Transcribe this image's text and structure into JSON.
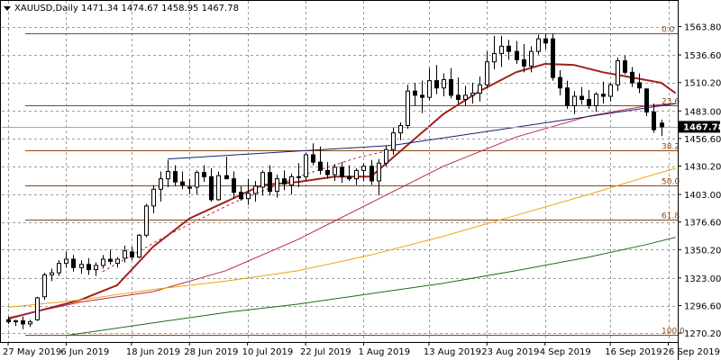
{
  "header": {
    "symbol": "XAUUSD,Daily",
    "ohlc": "1471.34 1474.67 1458.95 1467.78",
    "dropdown_icon": "triangle-down-icon"
  },
  "colors": {
    "background": "#ffffff",
    "grid": "#9e9e9e",
    "candle_bull_fill": "#ffffff",
    "candle_bear_fill": "#000000",
    "candle_outline": "#000000",
    "ma_short": "#a0211a",
    "ma_medium": "#b22a4a",
    "ma_long": "#f0a30a",
    "ma_longest": "#1f6b1f",
    "trendline": "#1c1c6e",
    "fib": "#8b4513",
    "price_marker_bg": "#000000",
    "price_marker_text": "#ffffff"
  },
  "chart_data": {
    "type": "candlestick",
    "title": "XAUUSD,Daily",
    "ylim": [
      1266,
      1572
    ],
    "grid": true,
    "y_ticks": [
      "1563.80",
      "1536.60",
      "1510.20",
      "1483.00",
      "1456.60",
      "1430.20",
      "1403.00",
      "1376.60",
      "1350.20",
      "1323.00",
      "1296.60",
      "1270.20"
    ],
    "y_tick_values": [
      1563.8,
      1536.6,
      1510.2,
      1483.0,
      1456.6,
      1430.2,
      1403.0,
      1376.6,
      1350.2,
      1323.0,
      1296.6,
      1270.2
    ],
    "x_ticks": [
      "27 May 2019",
      "6 Jun 2019",
      "18 Jun 2019",
      "28 Jun 2019",
      "10 Jul 2019",
      "22 Jul 2019",
      "1 Aug 2019",
      "13 Aug 2019",
      "23 Aug 2019",
      "4 Sep 2019",
      "16 Sep 2019",
      "26 Sep 2019"
    ],
    "x_tick_index": [
      0,
      8,
      17,
      25,
      33,
      41,
      49,
      58,
      66,
      74,
      83,
      91
    ],
    "current_price": "1467.78",
    "current_price_value": 1467.78,
    "candles": [
      [
        1283,
        1286,
        1279,
        1281
      ],
      [
        1281,
        1283,
        1277,
        1282
      ],
      [
        1282,
        1286,
        1274,
        1279
      ],
      [
        1279,
        1283,
        1276,
        1281
      ],
      [
        1283,
        1305,
        1282,
        1304
      ],
      [
        1305,
        1328,
        1302,
        1326
      ],
      [
        1326,
        1332,
        1320,
        1328
      ],
      [
        1328,
        1340,
        1325,
        1337
      ],
      [
        1337,
        1348,
        1333,
        1341
      ],
      [
        1341,
        1345,
        1329,
        1333
      ],
      [
        1333,
        1340,
        1327,
        1336
      ],
      [
        1336,
        1342,
        1326,
        1331
      ],
      [
        1331,
        1338,
        1325,
        1335
      ],
      [
        1335,
        1345,
        1332,
        1341
      ],
      [
        1341,
        1350,
        1336,
        1339
      ],
      [
        1337,
        1343,
        1333,
        1341
      ],
      [
        1342,
        1354,
        1338,
        1349
      ],
      [
        1348,
        1353,
        1340,
        1343
      ],
      [
        1343,
        1365,
        1342,
        1364
      ],
      [
        1364,
        1394,
        1362,
        1392
      ],
      [
        1392,
        1412,
        1385,
        1408
      ],
      [
        1408,
        1425,
        1396,
        1418
      ],
      [
        1418,
        1436,
        1410,
        1425
      ],
      [
        1425,
        1431,
        1411,
        1415
      ],
      [
        1415,
        1425,
        1408,
        1412
      ],
      [
        1410,
        1418,
        1403,
        1409
      ],
      [
        1410,
        1426,
        1403,
        1424
      ],
      [
        1424,
        1431,
        1415,
        1420
      ],
      [
        1420,
        1428,
        1396,
        1398
      ],
      [
        1398,
        1425,
        1397,
        1421
      ],
      [
        1421,
        1439,
        1419,
        1418
      ],
      [
        1418,
        1425,
        1399,
        1405
      ],
      [
        1405,
        1411,
        1397,
        1399
      ],
      [
        1399,
        1418,
        1393,
        1404
      ],
      [
        1404,
        1416,
        1396,
        1411
      ],
      [
        1410,
        1426,
        1402,
        1424
      ],
      [
        1424,
        1431,
        1402,
        1406
      ],
      [
        1406,
        1422,
        1400,
        1418
      ],
      [
        1418,
        1426,
        1407,
        1413
      ],
      [
        1412,
        1423,
        1403,
        1420
      ],
      [
        1420,
        1433,
        1410,
        1420
      ],
      [
        1420,
        1443,
        1416,
        1441
      ],
      [
        1441,
        1452,
        1431,
        1434
      ],
      [
        1434,
        1449,
        1422,
        1426
      ],
      [
        1426,
        1434,
        1418,
        1422
      ],
      [
        1422,
        1432,
        1416,
        1429
      ],
      [
        1429,
        1434,
        1414,
        1420
      ],
      [
        1420,
        1431,
        1416,
        1418
      ],
      [
        1418,
        1428,
        1412,
        1426
      ],
      [
        1426,
        1433,
        1416,
        1430
      ],
      [
        1430,
        1436,
        1412,
        1416
      ],
      [
        1416,
        1437,
        1402,
        1433
      ],
      [
        1433,
        1450,
        1430,
        1446
      ],
      [
        1446,
        1467,
        1441,
        1462
      ],
      [
        1462,
        1472,
        1455,
        1469
      ],
      [
        1469,
        1508,
        1466,
        1502
      ],
      [
        1502,
        1510,
        1488,
        1498
      ],
      [
        1498,
        1512,
        1481,
        1496
      ],
      [
        1496,
        1524,
        1493,
        1512
      ],
      [
        1512,
        1527,
        1499,
        1505
      ],
      [
        1505,
        1519,
        1497,
        1513
      ],
      [
        1513,
        1524,
        1495,
        1498
      ],
      [
        1498,
        1515,
        1490,
        1494
      ],
      [
        1494,
        1507,
        1488,
        1498
      ],
      [
        1498,
        1510,
        1490,
        1500
      ],
      [
        1500,
        1516,
        1492,
        1508
      ],
      [
        1508,
        1540,
        1505,
        1530
      ],
      [
        1530,
        1555,
        1523,
        1538
      ],
      [
        1538,
        1555,
        1525,
        1545
      ],
      [
        1545,
        1551,
        1532,
        1540
      ],
      [
        1540,
        1550,
        1528,
        1532
      ],
      [
        1532,
        1547,
        1520,
        1526
      ],
      [
        1526,
        1545,
        1520,
        1540
      ],
      [
        1540,
        1556,
        1537,
        1552
      ],
      [
        1552,
        1557,
        1542,
        1548
      ],
      [
        1552,
        1557,
        1512,
        1515
      ],
      [
        1515,
        1522,
        1498,
        1505
      ],
      [
        1505,
        1512,
        1485,
        1488
      ],
      [
        1488,
        1502,
        1480,
        1497
      ],
      [
        1497,
        1506,
        1489,
        1494
      ],
      [
        1494,
        1503,
        1485,
        1488
      ],
      [
        1488,
        1501,
        1482,
        1499
      ],
      [
        1499,
        1511,
        1490,
        1497
      ],
      [
        1497,
        1510,
        1492,
        1508
      ],
      [
        1508,
        1534,
        1502,
        1531
      ],
      [
        1531,
        1536,
        1518,
        1520
      ],
      [
        1520,
        1525,
        1506,
        1510
      ],
      [
        1510,
        1519,
        1500,
        1505
      ],
      [
        1504,
        1505,
        1478,
        1482
      ],
      [
        1482,
        1490,
        1462,
        1465
      ],
      [
        1471.34,
        1474.67,
        1458.95,
        1467.78
      ]
    ],
    "series": [
      {
        "type": "line",
        "points": [
          [
            0,
            1284
          ],
          [
            5,
            1293
          ],
          [
            10,
            1302
          ],
          [
            15,
            1316
          ],
          [
            20,
            1353
          ],
          [
            25,
            1380
          ],
          [
            30,
            1396
          ],
          [
            35,
            1412
          ],
          [
            40,
            1415
          ],
          [
            45,
            1420
          ],
          [
            50,
            1420
          ],
          [
            55,
            1450
          ],
          [
            60,
            1480
          ],
          [
            65,
            1502
          ],
          [
            70,
            1520
          ],
          [
            74,
            1528
          ],
          [
            78,
            1527
          ],
          [
            82,
            1520
          ],
          [
            86,
            1515
          ],
          [
            90,
            1510
          ],
          [
            92,
            1500
          ]
        ]
      },
      {
        "type": "line",
        "points": [
          [
            0,
            1285
          ],
          [
            10,
            1300
          ],
          [
            20,
            1310
          ],
          [
            30,
            1330
          ],
          [
            40,
            1360
          ],
          [
            50,
            1395
          ],
          [
            60,
            1430
          ],
          [
            70,
            1458
          ],
          [
            80,
            1478
          ],
          [
            88,
            1488
          ],
          [
            92,
            1490
          ]
        ]
      },
      {
        "type": "line",
        "points": [
          [
            0,
            1295
          ],
          [
            10,
            1302
          ],
          [
            20,
            1312
          ],
          [
            30,
            1320
          ],
          [
            40,
            1330
          ],
          [
            50,
            1345
          ],
          [
            60,
            1363
          ],
          [
            70,
            1383
          ],
          [
            80,
            1403
          ],
          [
            88,
            1420
          ],
          [
            92,
            1428
          ]
        ]
      },
      {
        "type": "line",
        "points": [
          [
            8,
            1268
          ],
          [
            20,
            1280
          ],
          [
            30,
            1290
          ],
          [
            40,
            1298
          ],
          [
            50,
            1308
          ],
          [
            60,
            1318
          ],
          [
            70,
            1330
          ],
          [
            80,
            1343
          ],
          [
            88,
            1355
          ],
          [
            92,
            1362
          ]
        ]
      },
      {
        "type": "line",
        "points": [
          [
            13,
            1329
          ],
          [
            22,
            1364
          ],
          [
            31,
            1395
          ],
          [
            40,
            1420
          ],
          [
            48,
            1438
          ],
          [
            53,
            1446
          ]
        ]
      }
    ],
    "trendlines": [
      {
        "from": [
          22,
          1437
        ],
        "to": [
          53,
          1450
        ]
      },
      {
        "from": [
          53,
          1450
        ],
        "to": [
          92,
          1490
        ]
      }
    ],
    "fibonacci": [
      {
        "label": "0.0",
        "value": 1557.5
      },
      {
        "label": "23.6",
        "value": 1488.5
      },
      {
        "label": "38.2",
        "value": 1445.5
      },
      {
        "label": "50.0",
        "value": 1411.8
      },
      {
        "label": "61.8",
        "value": 1378.5
      },
      {
        "label": "100.0",
        "value": 1269.0
      }
    ]
  }
}
